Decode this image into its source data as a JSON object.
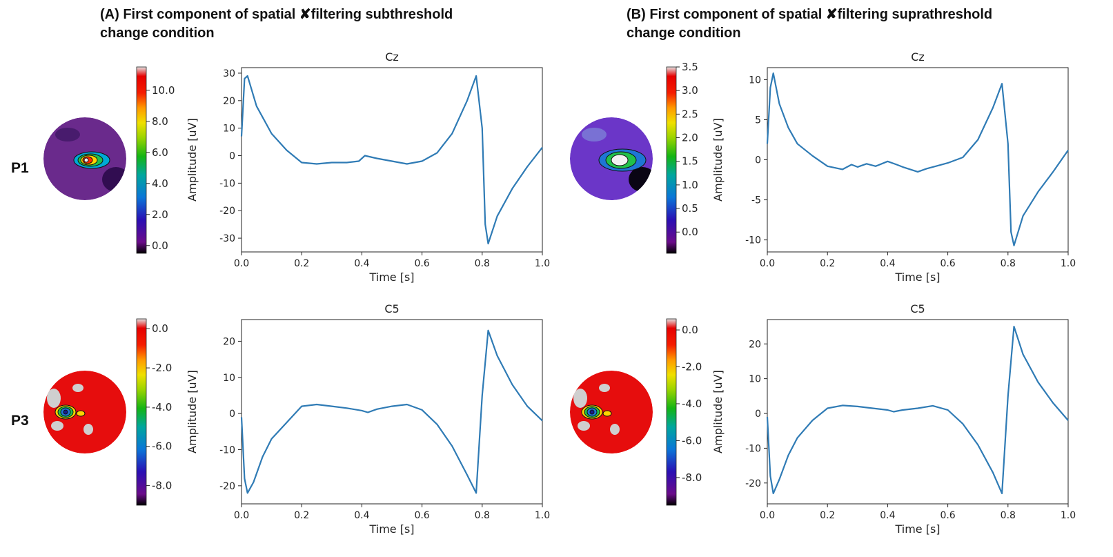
{
  "panels": [
    {
      "title_line1": "(A) First component of spatial %filtering subthreshold",
      "title_line2": "change condition"
    },
    {
      "title_line1": "(B) First component of spatial %filtering suprathreshold",
      "title_line2": "change condition"
    }
  ],
  "row_labels": [
    "P1",
    "P3"
  ],
  "colors": {
    "line": "#2f7bb5",
    "text": "#222222"
  },
  "topomaps": [
    {
      "id": "A-P1",
      "background": "#6a2a8c",
      "blobs": [
        "#3a1560",
        "#2b0a4a"
      ],
      "hotspot": [
        "#00a9d6",
        "#21c14a",
        "#ffd400",
        "#ff2a00",
        "#f2f2f2"
      ]
    },
    {
      "id": "B-P1",
      "background": "#6b36c8",
      "blobs": [
        "#7f8ad8",
        "#000000"
      ],
      "hotspot": [
        "#1e76d4",
        "#21c14a",
        "#f2f2f2"
      ]
    },
    {
      "id": "A-P3",
      "background": "#e60d0d",
      "blobs": [
        "#cfcfcf",
        "#cfcfcf"
      ],
      "hotspot": [
        "#ffd400",
        "#21c14a",
        "#1e76d4",
        "#1a1a8a"
      ]
    },
    {
      "id": "B-P3",
      "background": "#e60d0d",
      "blobs": [
        "#cfcfcf",
        "#cfcfcf"
      ],
      "hotspot": [
        "#ffd400",
        "#21c14a",
        "#1e76d4",
        "#1a1a8a"
      ]
    }
  ],
  "chart_data": [
    {
      "type": "line",
      "panel": "A",
      "row": "P1",
      "title": "Cz",
      "xlabel": "Time [s]",
      "ylabel": "Amplitude [uV]",
      "xlim": [
        0,
        1
      ],
      "ylim": [
        -35,
        32
      ],
      "xticks": [
        0.0,
        0.2,
        0.4,
        0.6,
        0.8,
        1.0
      ],
      "yticks": [
        -30,
        -20,
        -10,
        0,
        10,
        20,
        30
      ],
      "x": [
        0.0,
        0.01,
        0.02,
        0.05,
        0.1,
        0.15,
        0.2,
        0.25,
        0.3,
        0.35,
        0.39,
        0.41,
        0.45,
        0.5,
        0.55,
        0.6,
        0.65,
        0.7,
        0.75,
        0.78,
        0.8,
        0.81,
        0.82,
        0.85,
        0.9,
        0.95,
        1.0
      ],
      "y": [
        7,
        28,
        29,
        18,
        8,
        2,
        -2.5,
        -3,
        -2.5,
        -2.5,
        -2,
        0,
        -1,
        -2,
        -3,
        -2,
        1,
        8,
        20,
        29,
        10,
        -25,
        -32,
        -22,
        -12,
        -4,
        3
      ],
      "colorbar": {
        "ticks": [
          0.0,
          2.0,
          4.0,
          6.0,
          8.0,
          10.0
        ],
        "min": -0.5,
        "max": 11.5
      }
    },
    {
      "type": "line",
      "panel": "B",
      "row": "P1",
      "title": "Cz",
      "xlabel": "Time [s]",
      "ylabel": "Amplitude [uV]",
      "xlim": [
        0,
        1
      ],
      "ylim": [
        -11.5,
        11.5
      ],
      "xticks": [
        0.0,
        0.2,
        0.4,
        0.6,
        0.8,
        1.0
      ],
      "yticks": [
        -10,
        -5,
        0,
        5,
        10
      ],
      "x": [
        0.0,
        0.01,
        0.02,
        0.04,
        0.07,
        0.1,
        0.15,
        0.2,
        0.25,
        0.28,
        0.3,
        0.33,
        0.36,
        0.4,
        0.43,
        0.45,
        0.5,
        0.53,
        0.56,
        0.6,
        0.65,
        0.7,
        0.75,
        0.78,
        0.8,
        0.81,
        0.82,
        0.85,
        0.9,
        0.95,
        1.0
      ],
      "y": [
        2,
        9,
        10.8,
        7,
        4,
        2,
        0.5,
        -0.8,
        -1.2,
        -0.6,
        -0.9,
        -0.5,
        -0.8,
        -0.2,
        -0.6,
        -0.9,
        -1.5,
        -1.1,
        -0.8,
        -0.4,
        0.3,
        2.5,
        6.5,
        9.5,
        2,
        -9,
        -10.7,
        -7,
        -4,
        -1.5,
        1.2
      ],
      "colorbar": {
        "ticks": [
          0.0,
          0.5,
          1.0,
          1.5,
          2.0,
          2.5,
          3.0,
          3.5
        ],
        "min": -0.45,
        "max": 3.5
      }
    },
    {
      "type": "line",
      "panel": "A",
      "row": "P3",
      "title": "C5",
      "xlabel": "Time [s]",
      "ylabel": "Amplitude [uV]",
      "xlim": [
        0,
        1
      ],
      "ylim": [
        -25,
        26
      ],
      "xticks": [
        0.0,
        0.2,
        0.4,
        0.6,
        0.8,
        1.0
      ],
      "yticks": [
        -20,
        -10,
        0,
        10,
        20
      ],
      "x": [
        0.0,
        0.01,
        0.02,
        0.04,
        0.07,
        0.1,
        0.15,
        0.2,
        0.25,
        0.3,
        0.35,
        0.4,
        0.42,
        0.45,
        0.5,
        0.55,
        0.6,
        0.65,
        0.7,
        0.75,
        0.78,
        0.8,
        0.82,
        0.85,
        0.9,
        0.95,
        1.0
      ],
      "y": [
        -1,
        -18,
        -22,
        -19,
        -12,
        -7,
        -2.5,
        2,
        2.5,
        2,
        1.5,
        0.8,
        0.3,
        1.2,
        2,
        2.5,
        1,
        -3,
        -9,
        -17,
        -22,
        5,
        23,
        16,
        8,
        2,
        -2
      ],
      "colorbar": {
        "ticks": [
          -8.0,
          -6.0,
          -4.0,
          -2.0,
          0.0
        ],
        "min": -9.0,
        "max": 0.5
      }
    },
    {
      "type": "line",
      "panel": "B",
      "row": "P3",
      "title": "C5",
      "xlabel": "Time [s]",
      "ylabel": "Amplitude [uV]",
      "xlim": [
        0,
        1
      ],
      "ylim": [
        -26,
        27
      ],
      "xticks": [
        0.0,
        0.2,
        0.4,
        0.6,
        0.8,
        1.0
      ],
      "yticks": [
        -20,
        -10,
        0,
        10,
        20
      ],
      "x": [
        0.0,
        0.01,
        0.02,
        0.04,
        0.07,
        0.1,
        0.15,
        0.2,
        0.25,
        0.3,
        0.35,
        0.4,
        0.42,
        0.45,
        0.5,
        0.55,
        0.6,
        0.65,
        0.7,
        0.75,
        0.78,
        0.8,
        0.82,
        0.85,
        0.9,
        0.95,
        1.0
      ],
      "y": [
        -1,
        -18,
        -23,
        -19,
        -12,
        -7,
        -2,
        1.5,
        2.3,
        2,
        1.5,
        1,
        0.5,
        1,
        1.5,
        2.2,
        1,
        -3,
        -9,
        -17,
        -23,
        5,
        25,
        17,
        9,
        3,
        -2
      ],
      "colorbar": {
        "ticks": [
          -8.0,
          -6.0,
          -4.0,
          -2.0,
          0.0
        ],
        "min": -9.5,
        "max": 0.6
      }
    }
  ]
}
